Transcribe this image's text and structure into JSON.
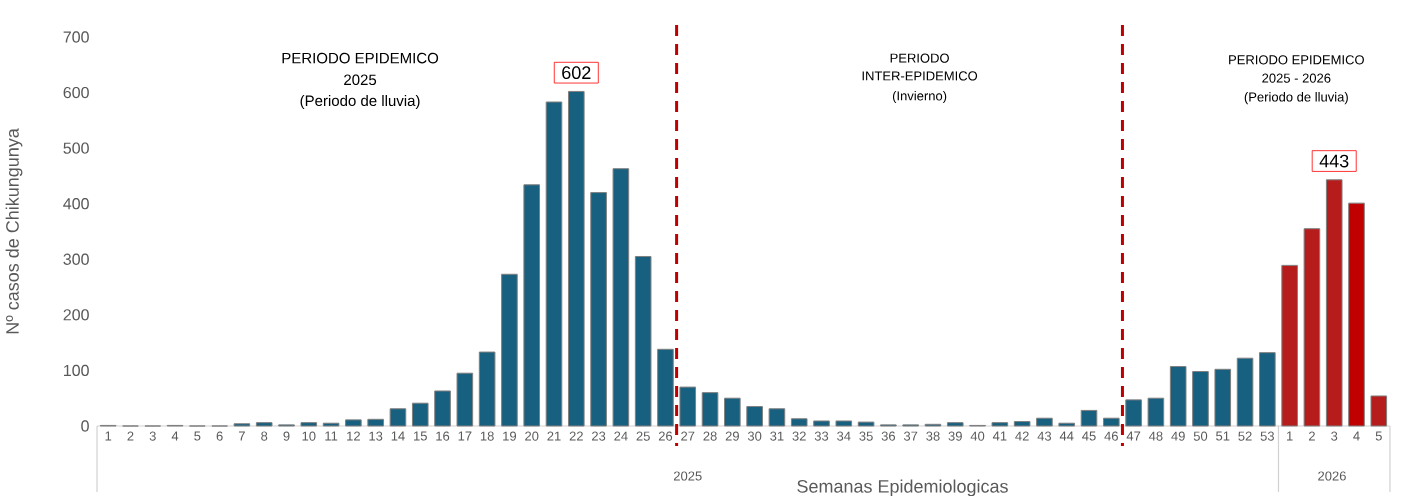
{
  "chart_data": {
    "type": "bar",
    "ylabel": "Nº casos  de Chikungunya",
    "xlabel": "Semanas Epidemiologicas",
    "categories": [
      "1",
      "2",
      "3",
      "4",
      "5",
      "6",
      "7",
      "8",
      "9",
      "10",
      "11",
      "12",
      "13",
      "14",
      "15",
      "16",
      "17",
      "18",
      "19",
      "20",
      "21",
      "22",
      "23",
      "24",
      "25",
      "26",
      "27",
      "28",
      "29",
      "30",
      "31",
      "32",
      "33",
      "34",
      "35",
      "36",
      "37",
      "38",
      "39",
      "40",
      "41",
      "42",
      "43",
      "44",
      "45",
      "46",
      "47",
      "48",
      "49",
      "50",
      "51",
      "52",
      "53",
      "1",
      "2",
      "3",
      "4",
      "5"
    ],
    "values": [
      1,
      0,
      0,
      1,
      0,
      0,
      4,
      6,
      2,
      6,
      5,
      11,
      12,
      31,
      41,
      63,
      95,
      133,
      273,
      434,
      583,
      602,
      420,
      463,
      305,
      138,
      70,
      60,
      50,
      35,
      31,
      13,
      9,
      9,
      7,
      2,
      2,
      3,
      6,
      1,
      6,
      8,
      14,
      5,
      28,
      14,
      47,
      50,
      107,
      98,
      102,
      122,
      132,
      289,
      355,
      443,
      401,
      54
    ],
    "colors": [
      "#17607f",
      "#17607f",
      "#17607f",
      "#17607f",
      "#17607f",
      "#17607f",
      "#17607f",
      "#17607f",
      "#17607f",
      "#17607f",
      "#17607f",
      "#17607f",
      "#17607f",
      "#17607f",
      "#17607f",
      "#17607f",
      "#17607f",
      "#17607f",
      "#17607f",
      "#17607f",
      "#17607f",
      "#17607f",
      "#17607f",
      "#17607f",
      "#17607f",
      "#17607f",
      "#17607f",
      "#17607f",
      "#17607f",
      "#17607f",
      "#17607f",
      "#17607f",
      "#17607f",
      "#17607f",
      "#17607f",
      "#17607f",
      "#17607f",
      "#17607f",
      "#17607f",
      "#17607f",
      "#17607f",
      "#17607f",
      "#17607f",
      "#17607f",
      "#17607f",
      "#17607f",
      "#17607f",
      "#17607f",
      "#17607f",
      "#17607f",
      "#17607f",
      "#17607f",
      "#17607f",
      "#b71c1c",
      "#b71c1c",
      "#b71c1c",
      "#c00000",
      "#b71c1c"
    ],
    "value_labels": [
      null,
      null,
      null,
      null,
      null,
      null,
      null,
      null,
      null,
      null,
      null,
      null,
      null,
      null,
      null,
      null,
      null,
      null,
      null,
      null,
      null,
      "602",
      null,
      null,
      null,
      null,
      null,
      null,
      null,
      null,
      null,
      null,
      null,
      null,
      null,
      null,
      null,
      null,
      null,
      null,
      null,
      null,
      null,
      null,
      null,
      null,
      null,
      null,
      null,
      null,
      null,
      null,
      null,
      null,
      null,
      "443",
      null,
      null
    ],
    "ylim": [
      0,
      700
    ],
    "yticks": [
      0,
      100,
      200,
      300,
      400,
      500,
      600,
      700
    ],
    "grid": false,
    "annotations": [
      "PERIODO EPIDEMICO",
      "2025",
      "(Periodo de lluvia)",
      "PERIODO",
      "INTER-EPIDEMICO",
      "(Invierno)",
      "PERIODO EPIDEMICO",
      "2025 - 2026",
      "(Periodo de lluvia)",
      "2025",
      "2026"
    ]
  }
}
